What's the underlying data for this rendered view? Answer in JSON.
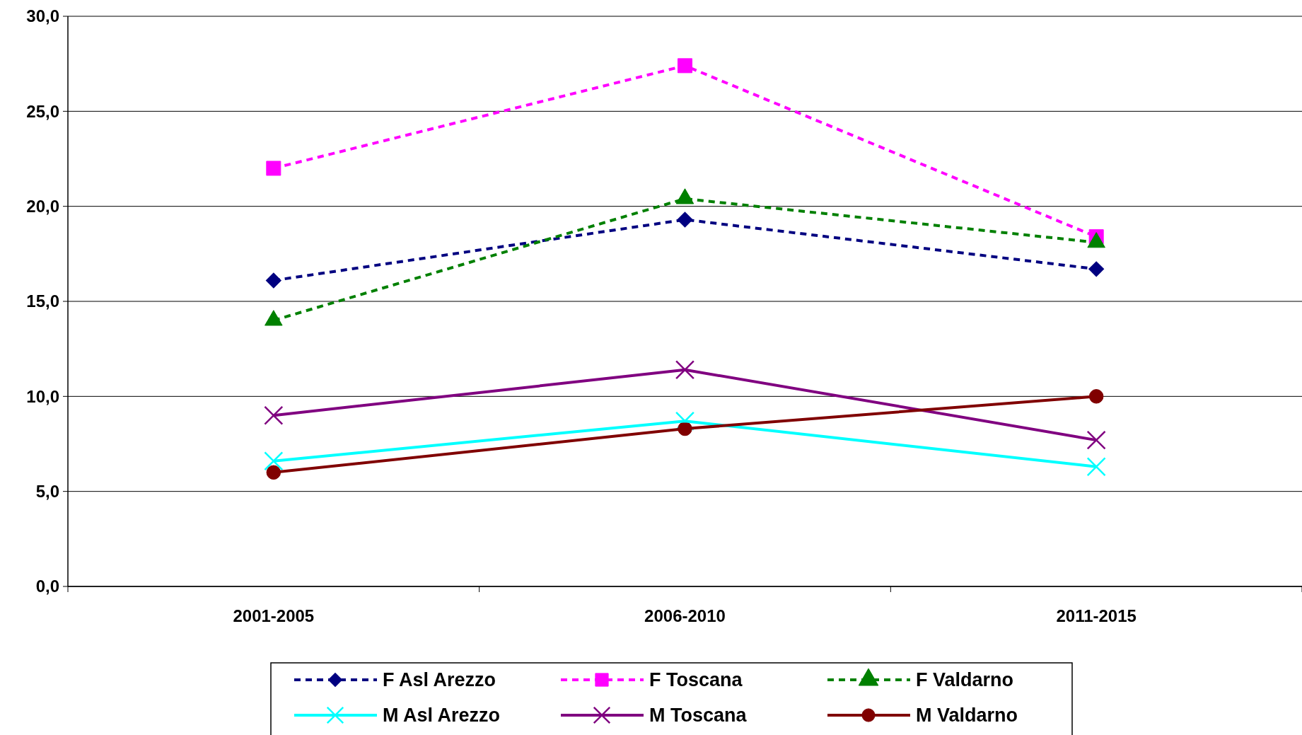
{
  "chart_data": {
    "type": "line",
    "categories": [
      "2001-2005",
      "2006-2010",
      "2011-2015"
    ],
    "series": [
      {
        "name": "F Asl Arezzo",
        "color": "#000080",
        "marker": "diamond",
        "line_style": "dashed",
        "values": [
          16.1,
          19.3,
          16.7
        ]
      },
      {
        "name": "F Toscana",
        "color": "#ff00ff",
        "marker": "square",
        "line_style": "dashed",
        "values": [
          22.0,
          27.4,
          18.4
        ]
      },
      {
        "name": "F Valdarno",
        "color": "#008000",
        "marker": "triangle",
        "line_style": "dashed",
        "values": [
          14.0,
          20.4,
          18.1
        ]
      },
      {
        "name": "M Asl Arezzo",
        "color": "#00ffff",
        "marker": "cross",
        "line_style": "solid",
        "values": [
          6.6,
          8.7,
          6.3
        ]
      },
      {
        "name": "M Toscana",
        "color": "#800080",
        "marker": "cross",
        "line_style": "solid",
        "values": [
          9.0,
          11.4,
          7.7
        ]
      },
      {
        "name": "M Valdarno",
        "color": "#800000",
        "marker": "circle",
        "line_style": "solid",
        "values": [
          6.0,
          8.3,
          10.0
        ]
      }
    ],
    "ylim": [
      0,
      30
    ],
    "yticks": [
      {
        "value": 0,
        "label": "0,0"
      },
      {
        "value": 5,
        "label": "5,0"
      },
      {
        "value": 10,
        "label": "10,0"
      },
      {
        "value": 15,
        "label": "15,0"
      },
      {
        "value": 20,
        "label": "20,0"
      },
      {
        "value": 25,
        "label": "25,0"
      },
      {
        "value": 30,
        "label": "30,0"
      }
    ],
    "grid": "y",
    "legend": "bottom"
  }
}
